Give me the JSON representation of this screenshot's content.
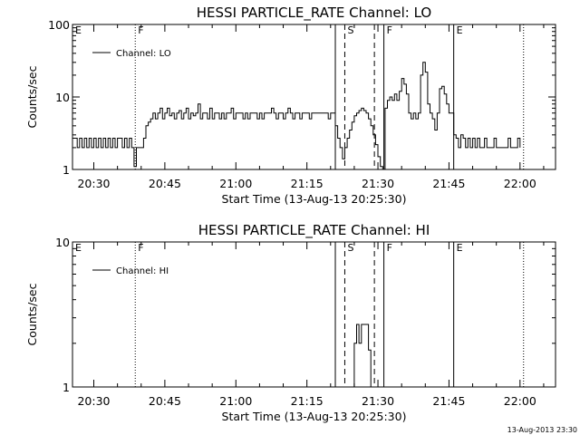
{
  "stamp": "13-Aug-2013 23:30",
  "chart_data": [
    {
      "type": "line",
      "title": "HESSI PARTICLE_RATE Channel: LO",
      "xlabel": "Start Time (13-Aug-13 20:25:30)",
      "ylabel": "Counts/sec",
      "yscale": "log",
      "ylim": [
        1,
        100
      ],
      "xlim": [
        "20:25:30",
        "22:07:30"
      ],
      "x_ticks": [
        "20:30",
        "20:45",
        "21:00",
        "21:15",
        "21:30",
        "21:45",
        "22:00"
      ],
      "y_ticks": [
        "1",
        "10",
        "100"
      ],
      "legend": "upper-left",
      "series": [
        {
          "name": "Channel: LO",
          "points": [
            [
              "20:25:30",
              2.7
            ],
            [
              "20:26:30",
              2
            ],
            [
              "20:27:00",
              2.7
            ],
            [
              "20:27:30",
              2
            ],
            [
              "20:28:00",
              2.7
            ],
            [
              "20:28:30",
              2
            ],
            [
              "20:29:00",
              2.7
            ],
            [
              "20:29:30",
              2
            ],
            [
              "20:30:00",
              2.7
            ],
            [
              "20:30:30",
              2
            ],
            [
              "20:31:00",
              2.7
            ],
            [
              "20:31:30",
              2
            ],
            [
              "20:32:00",
              2.7
            ],
            [
              "20:32:30",
              2
            ],
            [
              "20:33:00",
              2.7
            ],
            [
              "20:33:30",
              2
            ],
            [
              "20:34:00",
              2.7
            ],
            [
              "20:34:30",
              2
            ],
            [
              "20:35:00",
              2.7
            ],
            [
              "20:35:30",
              2.7
            ],
            [
              "20:36:00",
              2
            ],
            [
              "20:36:30",
              2.7
            ],
            [
              "20:37:00",
              2
            ],
            [
              "20:37:30",
              2.7
            ],
            [
              "20:38:00",
              2
            ],
            [
              "20:38:30",
              1.1
            ],
            [
              "20:39:00",
              2
            ],
            [
              "20:40:00",
              2
            ],
            [
              "20:40:30",
              2.7
            ],
            [
              "20:41:00",
              4
            ],
            [
              "20:41:30",
              4.5
            ],
            [
              "20:42:00",
              5
            ],
            [
              "20:42:30",
              6
            ],
            [
              "20:43:00",
              5
            ],
            [
              "20:43:30",
              6
            ],
            [
              "20:44:00",
              7
            ],
            [
              "20:44:30",
              5
            ],
            [
              "20:45:00",
              6
            ],
            [
              "20:45:30",
              7
            ],
            [
              "20:46:00",
              5.5
            ],
            [
              "20:46:30",
              6
            ],
            [
              "20:47:00",
              5
            ],
            [
              "20:47:30",
              6
            ],
            [
              "20:48:00",
              6.5
            ],
            [
              "20:48:30",
              5
            ],
            [
              "20:49:00",
              6
            ],
            [
              "20:49:30",
              7
            ],
            [
              "20:50:00",
              5
            ],
            [
              "20:50:30",
              6
            ],
            [
              "20:51:00",
              5.5
            ],
            [
              "20:51:30",
              6
            ],
            [
              "20:52:00",
              8
            ],
            [
              "20:52:30",
              5
            ],
            [
              "20:53:00",
              6
            ],
            [
              "20:53:30",
              6
            ],
            [
              "20:54:00",
              5
            ],
            [
              "20:54:30",
              7
            ],
            [
              "20:55:00",
              5
            ],
            [
              "20:55:30",
              6
            ],
            [
              "20:56:00",
              6
            ],
            [
              "20:56:30",
              5
            ],
            [
              "20:57:00",
              6
            ],
            [
              "20:57:30",
              5
            ],
            [
              "20:58:00",
              6
            ],
            [
              "20:59:00",
              7
            ],
            [
              "20:59:30",
              5
            ],
            [
              "21:00:00",
              6
            ],
            [
              "21:01:00",
              6
            ],
            [
              "21:01:30",
              5
            ],
            [
              "21:02:00",
              6
            ],
            [
              "21:02:30",
              5
            ],
            [
              "21:03:00",
              6
            ],
            [
              "21:04:00",
              6
            ],
            [
              "21:04:30",
              5
            ],
            [
              "21:05:00",
              6
            ],
            [
              "21:05:30",
              5
            ],
            [
              "21:06:00",
              6
            ],
            [
              "21:07:00",
              6
            ],
            [
              "21:07:30",
              7
            ],
            [
              "21:08:00",
              6
            ],
            [
              "21:08:30",
              5
            ],
            [
              "21:09:00",
              6
            ],
            [
              "21:09:30",
              6
            ],
            [
              "21:10:00",
              5
            ],
            [
              "21:10:30",
              6
            ],
            [
              "21:11:00",
              7
            ],
            [
              "21:11:30",
              6
            ],
            [
              "21:12:00",
              5
            ],
            [
              "21:12:30",
              6
            ],
            [
              "21:13:00",
              6
            ],
            [
              "21:13:30",
              5
            ],
            [
              "21:14:00",
              6
            ],
            [
              "21:15:00",
              6
            ],
            [
              "21:15:30",
              5
            ],
            [
              "21:16:00",
              6
            ],
            [
              "21:17:00",
              6
            ],
            [
              "21:18:00",
              6
            ],
            [
              "21:19:00",
              6
            ],
            [
              "21:19:30",
              5
            ],
            [
              "21:20:00",
              6
            ],
            [
              "21:20:30",
              6
            ],
            [
              "21:21:00",
              4
            ],
            [
              "21:21:30",
              2.7
            ],
            [
              "21:22:00",
              2
            ],
            [
              "21:22:30",
              1.4
            ],
            [
              "21:23:00",
              2
            ],
            [
              "21:23:30",
              2.7
            ],
            [
              "21:24:00",
              3.5
            ],
            [
              "21:24:30",
              4.5
            ],
            [
              "21:25:00",
              5.5
            ],
            [
              "21:25:30",
              6
            ],
            [
              "21:26:00",
              6.5
            ],
            [
              "21:26:30",
              7
            ],
            [
              "21:27:00",
              6.5
            ],
            [
              "21:27:30",
              6
            ],
            [
              "21:28:00",
              5
            ],
            [
              "21:28:30",
              4
            ],
            [
              "21:29:00",
              3
            ],
            [
              "21:29:30",
              2.2
            ],
            [
              "21:30:00",
              1.5
            ],
            [
              "21:30:30",
              1.1
            ],
            [
              "21:31:00",
              1
            ],
            [
              "21:31:30",
              7
            ],
            [
              "21:32:00",
              9
            ],
            [
              "21:32:30",
              10
            ],
            [
              "21:33:00",
              9
            ],
            [
              "21:33:30",
              11
            ],
            [
              "21:34:00",
              9
            ],
            [
              "21:34:30",
              12
            ],
            [
              "21:35:00",
              18
            ],
            [
              "21:35:30",
              15
            ],
            [
              "21:36:00",
              11
            ],
            [
              "21:36:30",
              6
            ],
            [
              "21:37:00",
              5
            ],
            [
              "21:37:30",
              6
            ],
            [
              "21:38:00",
              5
            ],
            [
              "21:38:30",
              6
            ],
            [
              "21:39:00",
              20
            ],
            [
              "21:39:30",
              30
            ],
            [
              "21:40:00",
              22
            ],
            [
              "21:40:30",
              8
            ],
            [
              "21:41:00",
              6
            ],
            [
              "21:41:30",
              5
            ],
            [
              "21:42:00",
              3.5
            ],
            [
              "21:42:30",
              6
            ],
            [
              "21:43:00",
              13
            ],
            [
              "21:43:30",
              14
            ],
            [
              "21:44:00",
              11
            ],
            [
              "21:44:30",
              8
            ],
            [
              "21:45:00",
              6
            ],
            [
              "21:45:30",
              6
            ],
            [
              "21:46:00",
              3
            ],
            [
              "21:46:30",
              2.7
            ],
            [
              "21:47:00",
              2
            ],
            [
              "21:47:30",
              3
            ],
            [
              "21:48:00",
              2.7
            ],
            [
              "21:48:30",
              2
            ],
            [
              "21:49:00",
              2.7
            ],
            [
              "21:49:30",
              2
            ],
            [
              "21:50:00",
              2.7
            ],
            [
              "21:50:30",
              2
            ],
            [
              "21:51:00",
              2.7
            ],
            [
              "21:51:30",
              2
            ],
            [
              "21:52:00",
              2
            ],
            [
              "21:52:30",
              2.7
            ],
            [
              "21:53:00",
              2
            ],
            [
              "21:54:00",
              2
            ],
            [
              "21:54:30",
              2.7
            ],
            [
              "21:55:00",
              2
            ],
            [
              "21:56:00",
              2
            ],
            [
              "21:57:00",
              2
            ],
            [
              "21:57:30",
              2.7
            ],
            [
              "21:58:00",
              2
            ],
            [
              "21:59:00",
              2
            ],
            [
              "21:59:30",
              2.7
            ],
            [
              "22:00:00",
              2
            ]
          ]
        }
      ],
      "markers": [
        {
          "label": "E",
          "time": "20:25:30",
          "line": "none"
        },
        {
          "label": "F",
          "time": "20:38:45",
          "line": "dotted"
        },
        {
          "label": "",
          "time": "21:21:00",
          "line": "solid"
        },
        {
          "label": "S",
          "time": "21:23:00",
          "line": "dashed"
        },
        {
          "label": "",
          "time": "21:29:15",
          "line": "dashed"
        },
        {
          "label": "F",
          "time": "21:31:15",
          "line": "solid"
        },
        {
          "label": "E",
          "time": "21:46:00",
          "line": "solid"
        },
        {
          "label": "",
          "time": "22:00:45",
          "line": "dotted"
        }
      ]
    },
    {
      "type": "line",
      "title": "HESSI PARTICLE_RATE Channel: HI",
      "xlabel": "Start Time (13-Aug-13 20:25:30)",
      "ylabel": "Counts/sec",
      "yscale": "log",
      "ylim": [
        1,
        10
      ],
      "xlim": [
        "20:25:30",
        "22:07:30"
      ],
      "x_ticks": [
        "20:30",
        "20:45",
        "21:00",
        "21:15",
        "21:30",
        "21:45",
        "22:00"
      ],
      "y_ticks": [
        "1",
        "10"
      ],
      "legend": "upper-left",
      "series": [
        {
          "name": "Channel: HI",
          "points": [
            [
              "21:24:30",
              1
            ],
            [
              "21:25:00",
              2
            ],
            [
              "21:25:30",
              2.7
            ],
            [
              "21:26:00",
              2
            ],
            [
              "21:26:30",
              2.7
            ],
            [
              "21:27:30",
              2.7
            ],
            [
              "21:28:00",
              1.8
            ],
            [
              "21:28:30",
              1
            ]
          ]
        }
      ],
      "markers": [
        {
          "label": "E",
          "time": "20:25:30",
          "line": "none"
        },
        {
          "label": "F",
          "time": "20:38:45",
          "line": "dotted"
        },
        {
          "label": "",
          "time": "21:21:00",
          "line": "solid"
        },
        {
          "label": "S",
          "time": "21:23:00",
          "line": "dashed"
        },
        {
          "label": "",
          "time": "21:29:15",
          "line": "dashed"
        },
        {
          "label": "F",
          "time": "21:31:15",
          "line": "solid"
        },
        {
          "label": "E",
          "time": "21:46:00",
          "line": "solid"
        },
        {
          "label": "",
          "time": "22:00:45",
          "line": "dotted"
        }
      ]
    }
  ]
}
